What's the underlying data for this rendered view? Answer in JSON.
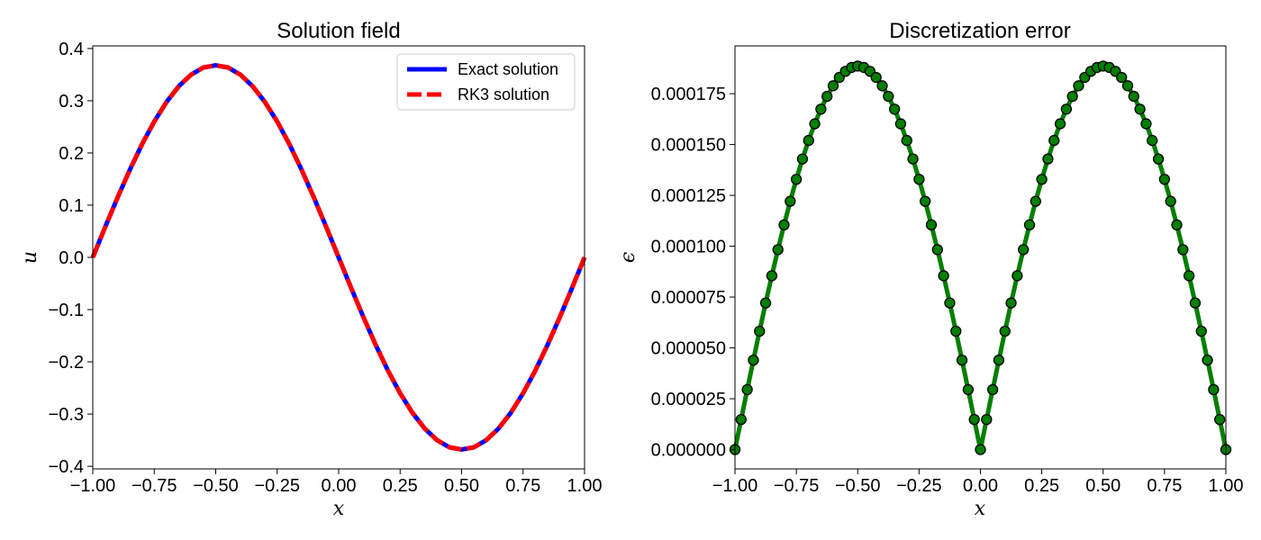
{
  "chart_data": [
    {
      "type": "line",
      "title": "Solution field",
      "xlabel": "x",
      "ylabel": "u",
      "xlim": [
        -1.0,
        1.0
      ],
      "ylim": [
        -0.405,
        0.405
      ],
      "xticks": [
        "−1.00",
        "−0.75",
        "−0.50",
        "−0.25",
        "0.00",
        "0.25",
        "0.50",
        "0.75",
        "1.00"
      ],
      "yticks": [
        "−0.4",
        "−0.3",
        "−0.2",
        "−0.1",
        "0.0",
        "0.1",
        "0.2",
        "0.3",
        "0.4"
      ],
      "legend_position": "top-right",
      "series": [
        {
          "name": "Exact solution",
          "color": "#0000ff",
          "style": "solid",
          "x": [
            -1.0,
            -0.95,
            -0.9,
            -0.85,
            -0.8,
            -0.75,
            -0.7,
            -0.65,
            -0.6,
            -0.55,
            -0.5,
            -0.45,
            -0.4,
            -0.35,
            -0.3,
            -0.25,
            -0.2,
            -0.15,
            -0.1,
            -0.05,
            0.0,
            0.05,
            0.1,
            0.15,
            0.2,
            0.25,
            0.3,
            0.35,
            0.4,
            0.45,
            0.5,
            0.55,
            0.6,
            0.65,
            0.7,
            0.75,
            0.8,
            0.85,
            0.9,
            0.95,
            1.0
          ],
          "y": [
            0.0,
            0.0576,
            0.1137,
            0.167,
            0.2163,
            0.2601,
            0.2976,
            0.3278,
            0.35,
            0.3636,
            0.3679,
            0.3636,
            0.35,
            0.3278,
            0.2976,
            0.2601,
            0.2163,
            0.167,
            0.1137,
            0.0576,
            0.0,
            -0.0576,
            -0.1137,
            -0.167,
            -0.2163,
            -0.2601,
            -0.2976,
            -0.3278,
            -0.35,
            -0.3636,
            -0.3679,
            -0.3636,
            -0.35,
            -0.3278,
            -0.2976,
            -0.2601,
            -0.2163,
            -0.167,
            -0.1137,
            -0.0576,
            0.0
          ]
        },
        {
          "name": "RK3 solution",
          "color": "#ff0000",
          "style": "dashed",
          "x": [
            -1.0,
            -0.95,
            -0.9,
            -0.85,
            -0.8,
            -0.75,
            -0.7,
            -0.65,
            -0.6,
            -0.55,
            -0.5,
            -0.45,
            -0.4,
            -0.35,
            -0.3,
            -0.25,
            -0.2,
            -0.15,
            -0.1,
            -0.05,
            0.0,
            0.05,
            0.1,
            0.15,
            0.2,
            0.25,
            0.3,
            0.35,
            0.4,
            0.45,
            0.5,
            0.55,
            0.6,
            0.65,
            0.7,
            0.75,
            0.8,
            0.85,
            0.9,
            0.95,
            1.0
          ],
          "y": [
            0.0,
            0.0576,
            0.1137,
            0.167,
            0.2163,
            0.2601,
            0.2976,
            0.3278,
            0.35,
            0.3636,
            0.3679,
            0.3636,
            0.35,
            0.3278,
            0.2976,
            0.2601,
            0.2163,
            0.167,
            0.1137,
            0.0576,
            0.0,
            -0.0576,
            -0.1137,
            -0.167,
            -0.2163,
            -0.2601,
            -0.2976,
            -0.3278,
            -0.35,
            -0.3636,
            -0.3679,
            -0.3636,
            -0.35,
            -0.3278,
            -0.2976,
            -0.2601,
            -0.2163,
            -0.167,
            -0.1137,
            -0.0576,
            0.0
          ]
        }
      ]
    },
    {
      "type": "line",
      "title": "Discretization error",
      "xlabel": "x",
      "ylabel": "ϵ",
      "xlim": [
        -1.0,
        1.0
      ],
      "ylim": [
        -9.5e-06,
        0.0001985
      ],
      "xticks": [
        "−1.00",
        "−0.75",
        "−0.50",
        "−0.25",
        "0.00",
        "0.25",
        "0.50",
        "0.75",
        "1.00"
      ],
      "yticks": [
        "0.000000",
        "0.000025",
        "0.000050",
        "0.000075",
        "0.000100",
        "0.000125",
        "0.000150",
        "0.000175"
      ],
      "series": [
        {
          "color": "#007f00",
          "marker_color": "#007f00",
          "marker_edge": "#000000",
          "style": "solid-with-circle-markers",
          "x": [
            -1.0,
            -0.975,
            -0.95,
            -0.925,
            -0.9,
            -0.875,
            -0.85,
            -0.825,
            -0.8,
            -0.775,
            -0.75,
            -0.725,
            -0.7,
            -0.675,
            -0.65,
            -0.625,
            -0.6,
            -0.575,
            -0.55,
            -0.525,
            -0.5,
            -0.475,
            -0.45,
            -0.425,
            -0.4,
            -0.375,
            -0.35,
            -0.325,
            -0.3,
            -0.275,
            -0.25,
            -0.225,
            -0.2,
            -0.175,
            -0.15,
            -0.125,
            -0.1,
            -0.075,
            -0.05,
            -0.025,
            0.0,
            0.025,
            0.05,
            0.075,
            0.1,
            0.125,
            0.15,
            0.175,
            0.2,
            0.225,
            0.25,
            0.275,
            0.3,
            0.325,
            0.35,
            0.375,
            0.4,
            0.425,
            0.45,
            0.475,
            0.5,
            0.525,
            0.55,
            0.575,
            0.6,
            0.625,
            0.65,
            0.675,
            0.7,
            0.725,
            0.75,
            0.775,
            0.8,
            0.825,
            0.85,
            0.875,
            0.9,
            0.925,
            0.95,
            0.975,
            1.0
          ],
          "y": [
            0.0,
            1.48e-05,
            2.95e-05,
            4.4e-05,
            5.82e-05,
            7.21e-05,
            8.55e-05,
            9.83e-05,
            0.0001105,
            0.0001221,
            0.0001329,
            0.0001429,
            0.000152,
            0.0001602,
            0.0001674,
            0.0001737,
            0.0001789,
            0.000183,
            0.000186,
            0.0001879,
            0.0001886,
            0.0001879,
            0.000186,
            0.000183,
            0.0001789,
            0.0001737,
            0.0001674,
            0.0001602,
            0.000152,
            0.0001429,
            0.0001329,
            0.0001221,
            0.0001105,
            9.83e-05,
            8.55e-05,
            7.21e-05,
            5.82e-05,
            4.4e-05,
            2.95e-05,
            1.48e-05,
            0.0,
            1.48e-05,
            2.95e-05,
            4.4e-05,
            5.82e-05,
            7.21e-05,
            8.55e-05,
            9.83e-05,
            0.0001105,
            0.0001221,
            0.0001329,
            0.0001429,
            0.000152,
            0.0001602,
            0.0001674,
            0.0001737,
            0.0001789,
            0.000183,
            0.000186,
            0.0001879,
            0.0001886,
            0.0001879,
            0.000186,
            0.000183,
            0.0001789,
            0.0001737,
            0.0001674,
            0.0001602,
            0.000152,
            0.0001429,
            0.0001329,
            0.0001221,
            0.0001105,
            9.83e-05,
            8.55e-05,
            7.21e-05,
            5.82e-05,
            4.4e-05,
            2.95e-05,
            1.48e-05,
            0.0
          ]
        }
      ]
    }
  ]
}
